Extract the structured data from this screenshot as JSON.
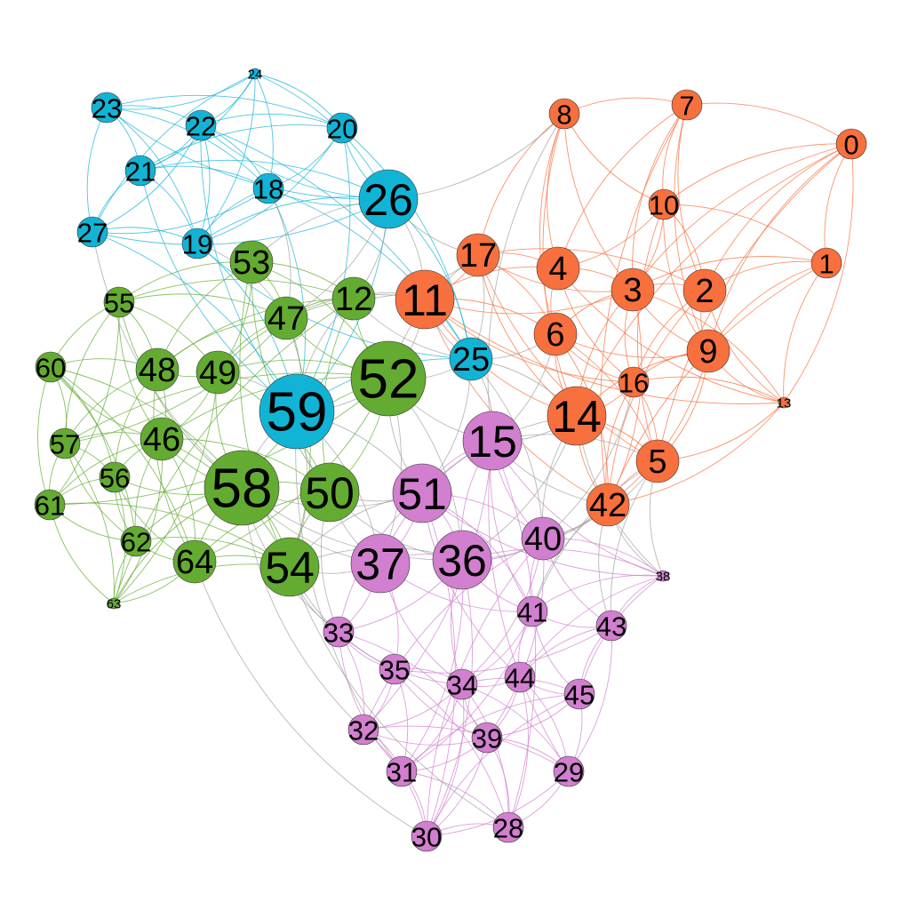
{
  "colors": {
    "cyan": "#12b4d6",
    "orange": "#f8703d",
    "green": "#63ac31",
    "purple": "#d27fd0",
    "gray": "#a0a0a0",
    "background": "#ffffff"
  },
  "communities": [
    {
      "id": "cyan",
      "nodes": [
        "18",
        "19",
        "20",
        "21",
        "22",
        "23",
        "24",
        "25",
        "26",
        "27",
        "59"
      ]
    },
    {
      "id": "orange",
      "nodes": [
        "0",
        "1",
        "2",
        "3",
        "4",
        "5",
        "6",
        "7",
        "8",
        "9",
        "10",
        "11",
        "13",
        "14",
        "16",
        "17",
        "42"
      ]
    },
    {
      "id": "green",
      "nodes": [
        "12",
        "46",
        "47",
        "48",
        "49",
        "50",
        "52",
        "53",
        "54",
        "55",
        "56",
        "57",
        "58",
        "60",
        "61",
        "62",
        "63",
        "64"
      ]
    },
    {
      "id": "purple",
      "nodes": [
        "15",
        "28",
        "29",
        "30",
        "31",
        "32",
        "33",
        "34",
        "35",
        "36",
        "37",
        "38",
        "39",
        "40",
        "41",
        "43",
        "44",
        "45",
        "51"
      ]
    }
  ],
  "nodes": [
    {
      "label": "0",
      "community": "orange",
      "size": 1
    },
    {
      "label": "1",
      "community": "orange",
      "size": 1
    },
    {
      "label": "2",
      "community": "orange",
      "size": 2
    },
    {
      "label": "3",
      "community": "orange",
      "size": 2
    },
    {
      "label": "4",
      "community": "orange",
      "size": 2
    },
    {
      "label": "5",
      "community": "orange",
      "size": 2
    },
    {
      "label": "6",
      "community": "orange",
      "size": 2
    },
    {
      "label": "7",
      "community": "orange",
      "size": 1
    },
    {
      "label": "8",
      "community": "orange",
      "size": 1
    },
    {
      "label": "9",
      "community": "orange",
      "size": 2
    },
    {
      "label": "10",
      "community": "orange",
      "size": 1
    },
    {
      "label": "11",
      "community": "orange",
      "size": 3
    },
    {
      "label": "13",
      "community": "orange",
      "size": 0
    },
    {
      "label": "14",
      "community": "orange",
      "size": 3
    },
    {
      "label": "16",
      "community": "orange",
      "size": 1
    },
    {
      "label": "17",
      "community": "orange",
      "size": 2
    },
    {
      "label": "42",
      "community": "orange",
      "size": 2
    },
    {
      "label": "18",
      "community": "cyan",
      "size": 1
    },
    {
      "label": "19",
      "community": "cyan",
      "size": 1
    },
    {
      "label": "20",
      "community": "cyan",
      "size": 1
    },
    {
      "label": "21",
      "community": "cyan",
      "size": 1
    },
    {
      "label": "22",
      "community": "cyan",
      "size": 1
    },
    {
      "label": "23",
      "community": "cyan",
      "size": 1
    },
    {
      "label": "24",
      "community": "cyan",
      "size": 0
    },
    {
      "label": "25",
      "community": "cyan",
      "size": 2
    },
    {
      "label": "26",
      "community": "cyan",
      "size": 3
    },
    {
      "label": "27",
      "community": "cyan",
      "size": 1
    },
    {
      "label": "59",
      "community": "cyan",
      "size": 4
    },
    {
      "label": "12",
      "community": "green",
      "size": 2
    },
    {
      "label": "46",
      "community": "green",
      "size": 2
    },
    {
      "label": "47",
      "community": "green",
      "size": 2
    },
    {
      "label": "48",
      "community": "green",
      "size": 2
    },
    {
      "label": "49",
      "community": "green",
      "size": 2
    },
    {
      "label": "50",
      "community": "green",
      "size": 3
    },
    {
      "label": "52",
      "community": "green",
      "size": 4
    },
    {
      "label": "53",
      "community": "green",
      "size": 2
    },
    {
      "label": "54",
      "community": "green",
      "size": 3
    },
    {
      "label": "55",
      "community": "green",
      "size": 1
    },
    {
      "label": "56",
      "community": "green",
      "size": 1
    },
    {
      "label": "57",
      "community": "green",
      "size": 1
    },
    {
      "label": "58",
      "community": "green",
      "size": 4
    },
    {
      "label": "60",
      "community": "green",
      "size": 1
    },
    {
      "label": "61",
      "community": "green",
      "size": 1
    },
    {
      "label": "62",
      "community": "green",
      "size": 1
    },
    {
      "label": "63",
      "community": "green",
      "size": 0
    },
    {
      "label": "64",
      "community": "green",
      "size": 2
    },
    {
      "label": "15",
      "community": "purple",
      "size": 3
    },
    {
      "label": "28",
      "community": "purple",
      "size": 1
    },
    {
      "label": "29",
      "community": "purple",
      "size": 1
    },
    {
      "label": "30",
      "community": "purple",
      "size": 1
    },
    {
      "label": "31",
      "community": "purple",
      "size": 1
    },
    {
      "label": "32",
      "community": "purple",
      "size": 1
    },
    {
      "label": "33",
      "community": "purple",
      "size": 1
    },
    {
      "label": "34",
      "community": "purple",
      "size": 1
    },
    {
      "label": "35",
      "community": "purple",
      "size": 1
    },
    {
      "label": "36",
      "community": "purple",
      "size": 3
    },
    {
      "label": "37",
      "community": "purple",
      "size": 3
    },
    {
      "label": "38",
      "community": "purple",
      "size": 0
    },
    {
      "label": "39",
      "community": "purple",
      "size": 1
    },
    {
      "label": "40",
      "community": "purple",
      "size": 2
    },
    {
      "label": "41",
      "community": "purple",
      "size": 1
    },
    {
      "label": "43",
      "community": "purple",
      "size": 1
    },
    {
      "label": "44",
      "community": "purple",
      "size": 1
    },
    {
      "label": "45",
      "community": "purple",
      "size": 1
    },
    {
      "label": "51",
      "community": "purple",
      "size": 3
    }
  ]
}
